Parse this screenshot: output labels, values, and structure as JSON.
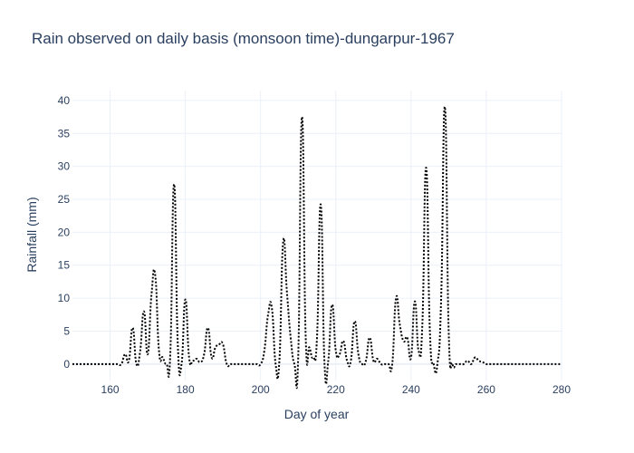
{
  "chart_data": {
    "type": "line",
    "title": "Rain observed on daily basis (monsoon time)-dungarpur-1967",
    "xlabel": "Day of year",
    "ylabel": "Rainfall (mm)",
    "xlim": [
      150,
      280
    ],
    "ylim": [
      -2.5,
      41.5
    ],
    "xticks": [
      160,
      180,
      200,
      220,
      240,
      260,
      280
    ],
    "yticks": [
      0,
      5,
      10,
      15,
      20,
      25,
      30,
      35,
      40
    ],
    "grid": true,
    "line_style": "dotted",
    "line_color": "#000000",
    "series": [
      {
        "x": [
          150,
          151,
          152,
          153,
          154,
          155,
          156,
          157,
          158,
          159,
          160,
          161,
          162,
          163,
          164,
          165,
          166,
          167,
          168,
          169,
          170,
          171,
          172,
          173,
          174,
          175,
          176,
          177,
          178,
          179,
          180,
          181,
          182,
          183,
          184,
          185,
          186,
          187,
          188,
          189,
          190,
          191,
          192,
          193,
          194,
          195,
          196,
          197,
          198,
          199,
          200,
          201,
          202,
          203,
          204,
          205,
          206,
          207,
          208,
          209,
          210,
          211,
          212,
          213,
          214,
          215,
          216,
          217,
          218,
          219,
          220,
          221,
          222,
          223,
          224,
          225,
          226,
          227,
          228,
          229,
          230,
          231,
          232,
          233,
          234,
          235,
          236,
          237,
          238,
          239,
          240,
          241,
          242,
          243,
          244,
          245,
          246,
          247,
          248,
          249,
          250,
          251,
          252,
          253,
          254,
          255,
          256,
          257,
          258,
          259,
          260,
          261,
          262,
          263,
          264,
          265,
          266,
          267,
          268,
          269,
          270,
          271,
          272,
          273,
          274,
          275,
          276,
          277,
          278,
          279,
          280
        ],
        "y": [
          0,
          0,
          0,
          0,
          0,
          0,
          0,
          0,
          0,
          0,
          0,
          0,
          0,
          0,
          1.5,
          0.5,
          5.5,
          0,
          2,
          8,
          1.5,
          10.5,
          13.5,
          2,
          1,
          0,
          1.5,
          27.3,
          3,
          0,
          9.8,
          1,
          0.5,
          0.8,
          0.3,
          1.5,
          5.5,
          1,
          2.5,
          3,
          3,
          0,
          0,
          0,
          0,
          0,
          0,
          0,
          0,
          0,
          0,
          2,
          7.5,
          8.5,
          0,
          0.5,
          18.5,
          11,
          4,
          0,
          1,
          37.5,
          4,
          2.5,
          1,
          4,
          24.2,
          0,
          0.5,
          9,
          2,
          1.5,
          3.5,
          0.5,
          0.5,
          6.5,
          1.5,
          0,
          0.5,
          4,
          0.5,
          0.8,
          0,
          0,
          0,
          0,
          10,
          6,
          3.5,
          4,
          1,
          9.5,
          2,
          6,
          29.8,
          5,
          0,
          0,
          10,
          39,
          5,
          0,
          0,
          0,
          0,
          0.5,
          0,
          1,
          0.5,
          0.3,
          0,
          0,
          0,
          0,
          0,
          0,
          0,
          0,
          0,
          0,
          0,
          0,
          0,
          0,
          0,
          0,
          0,
          0,
          0,
          0,
          0
        ]
      }
    ]
  }
}
